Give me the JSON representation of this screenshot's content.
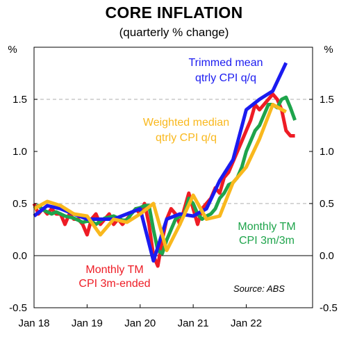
{
  "chart_data": {
    "type": "line",
    "title": "CORE INFLATION",
    "subtitle": "(quarterly % change)",
    "ylabel_left": "%",
    "ylabel_right": "%",
    "ylim": [
      -0.5,
      2.0
    ],
    "yticks": [
      "-0.5",
      "0.0",
      "0.5",
      "1.0",
      "1.5"
    ],
    "ytick_values": [
      -0.5,
      0.0,
      0.5,
      1.0,
      1.5
    ],
    "xlim": [
      2018.0,
      2023.25
    ],
    "xticks": [
      "Jan 18",
      "Jan 19",
      "Jan 20",
      "Jan 21",
      "Jan 22"
    ],
    "xtick_values": [
      2018.0,
      2019.0,
      2020.0,
      2021.0,
      2022.0
    ],
    "grid": "dashed horizontal at 0.5 and 1.5",
    "source": "Source: ABS",
    "series": [
      {
        "name": "Monthly TM CPI 3m-ended",
        "color": "#ee1c25",
        "x": [
          2018.0,
          2018.083,
          2018.167,
          2018.25,
          2018.333,
          2018.417,
          2018.5,
          2018.583,
          2018.667,
          2018.75,
          2018.833,
          2018.917,
          2019.0,
          2019.083,
          2019.167,
          2019.25,
          2019.333,
          2019.417,
          2019.5,
          2019.583,
          2019.667,
          2019.75,
          2019.833,
          2019.917,
          2020.0,
          2020.083,
          2020.167,
          2020.25,
          2020.333,
          2020.417,
          2020.5,
          2020.583,
          2020.667,
          2020.75,
          2020.833,
          2020.917,
          2021.0,
          2021.083,
          2021.167,
          2021.25,
          2021.333,
          2021.417,
          2021.5,
          2021.583,
          2021.667,
          2021.75,
          2021.833,
          2021.917,
          2022.0,
          2022.083,
          2022.167,
          2022.25,
          2022.333,
          2022.417,
          2022.5,
          2022.583,
          2022.667,
          2022.75,
          2022.833,
          2022.917
        ],
        "y": [
          0.5,
          0.4,
          0.45,
          0.4,
          0.45,
          0.4,
          0.4,
          0.3,
          0.4,
          0.35,
          0.35,
          0.3,
          0.2,
          0.35,
          0.4,
          0.3,
          0.35,
          0.4,
          0.3,
          0.35,
          0.3,
          0.35,
          0.4,
          0.45,
          0.4,
          0.5,
          0.3,
          0.0,
          -0.1,
          0.15,
          0.35,
          0.45,
          0.4,
          0.3,
          0.45,
          0.6,
          0.45,
          0.3,
          0.45,
          0.5,
          0.55,
          0.65,
          0.6,
          0.75,
          0.8,
          0.9,
          1.0,
          1.1,
          1.2,
          1.3,
          1.45,
          1.4,
          1.45,
          1.5,
          1.55,
          1.5,
          1.4,
          1.2,
          1.15,
          1.15
        ]
      },
      {
        "name": "Monthly TM CPI 3m/3m",
        "color": "#1ea44b",
        "x": [
          2018.0,
          2018.083,
          2018.167,
          2018.25,
          2018.333,
          2018.417,
          2018.5,
          2018.583,
          2018.667,
          2018.75,
          2018.833,
          2018.917,
          2019.0,
          2019.083,
          2019.167,
          2019.25,
          2019.333,
          2019.417,
          2019.5,
          2019.583,
          2019.667,
          2019.75,
          2019.833,
          2019.917,
          2020.0,
          2020.083,
          2020.167,
          2020.25,
          2020.333,
          2020.417,
          2020.5,
          2020.583,
          2020.667,
          2020.75,
          2020.833,
          2020.917,
          2021.0,
          2021.083,
          2021.167,
          2021.25,
          2021.333,
          2021.417,
          2021.5,
          2021.583,
          2021.667,
          2021.75,
          2021.833,
          2021.917,
          2022.0,
          2022.083,
          2022.167,
          2022.25,
          2022.333,
          2022.417,
          2022.5,
          2022.583,
          2022.667,
          2022.75,
          2022.833,
          2022.917
        ],
        "y": [
          0.45,
          0.48,
          0.44,
          0.42,
          0.4,
          0.42,
          0.4,
          0.38,
          0.37,
          0.36,
          0.34,
          0.32,
          0.33,
          0.33,
          0.3,
          0.33,
          0.36,
          0.37,
          0.38,
          0.36,
          0.34,
          0.34,
          0.4,
          0.45,
          0.46,
          0.48,
          0.48,
          0.25,
          0.05,
          0.02,
          0.15,
          0.25,
          0.35,
          0.38,
          0.4,
          0.55,
          0.5,
          0.4,
          0.35,
          0.38,
          0.4,
          0.45,
          0.55,
          0.6,
          0.68,
          0.7,
          0.75,
          0.85,
          1.0,
          1.1,
          1.2,
          1.25,
          1.35,
          1.45,
          1.45,
          1.42,
          1.5,
          1.52,
          1.42,
          1.3
        ]
      },
      {
        "name": "Trimmed mean qtrly CPI q/q",
        "color": "#1b1bf0",
        "x": [
          2018.0,
          2018.25,
          2018.5,
          2018.75,
          2019.0,
          2019.25,
          2019.5,
          2019.75,
          2020.0,
          2020.25,
          2020.5,
          2020.75,
          2021.0,
          2021.25,
          2021.5,
          2021.75,
          2022.0,
          2022.25,
          2022.5,
          2022.75
        ],
        "y": [
          0.38,
          0.48,
          0.45,
          0.4,
          0.35,
          0.35,
          0.35,
          0.4,
          0.45,
          -0.05,
          0.35,
          0.4,
          0.38,
          0.45,
          0.72,
          0.92,
          1.4,
          1.5,
          1.58,
          1.85
        ]
      },
      {
        "name": "Weighted median qtrly CPI q/q",
        "color": "#f9b81d",
        "x": [
          2018.0,
          2018.25,
          2018.5,
          2018.75,
          2019.0,
          2019.25,
          2019.5,
          2019.75,
          2020.0,
          2020.25,
          2020.5,
          2020.75,
          2021.0,
          2021.25,
          2021.5,
          2021.75,
          2022.0,
          2022.25,
          2022.5,
          2022.75
        ],
        "y": [
          0.45,
          0.52,
          0.48,
          0.4,
          0.38,
          0.2,
          0.35,
          0.32,
          0.4,
          0.5,
          0.05,
          0.3,
          0.58,
          0.35,
          0.38,
          0.7,
          0.85,
          1.12,
          1.45,
          1.38
        ]
      }
    ],
    "annotations": [
      {
        "lines": [
          "Trimmed mean",
          "qtrly CPI q/q"
        ],
        "color": "#1b1bf0"
      },
      {
        "lines": [
          "Weighted median",
          "qtrly CPI q/q"
        ],
        "color": "#f9b81d"
      },
      {
        "lines": [
          "Monthly TM",
          "CPI 3m/3m"
        ],
        "color": "#1ea44b"
      },
      {
        "lines": [
          "Monthly TM",
          "CPI 3m-ended"
        ],
        "color": "#ee1c25"
      }
    ]
  }
}
